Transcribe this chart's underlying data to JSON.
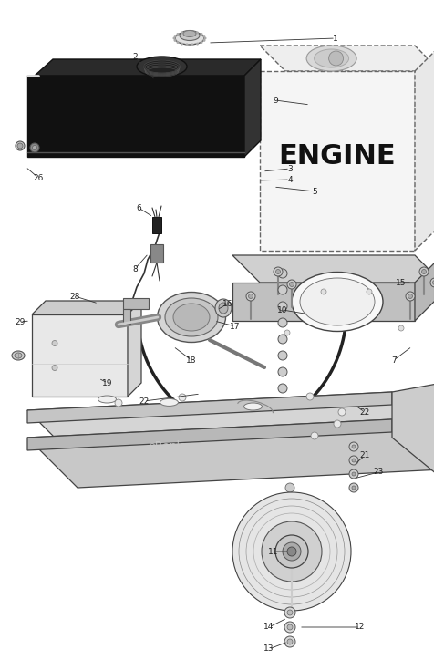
{
  "bg_color": "#ffffff",
  "watermark": "eReplacementParts.com",
  "fig_w": 4.76,
  "fig_h": 7.35,
  "dpi": 100
}
